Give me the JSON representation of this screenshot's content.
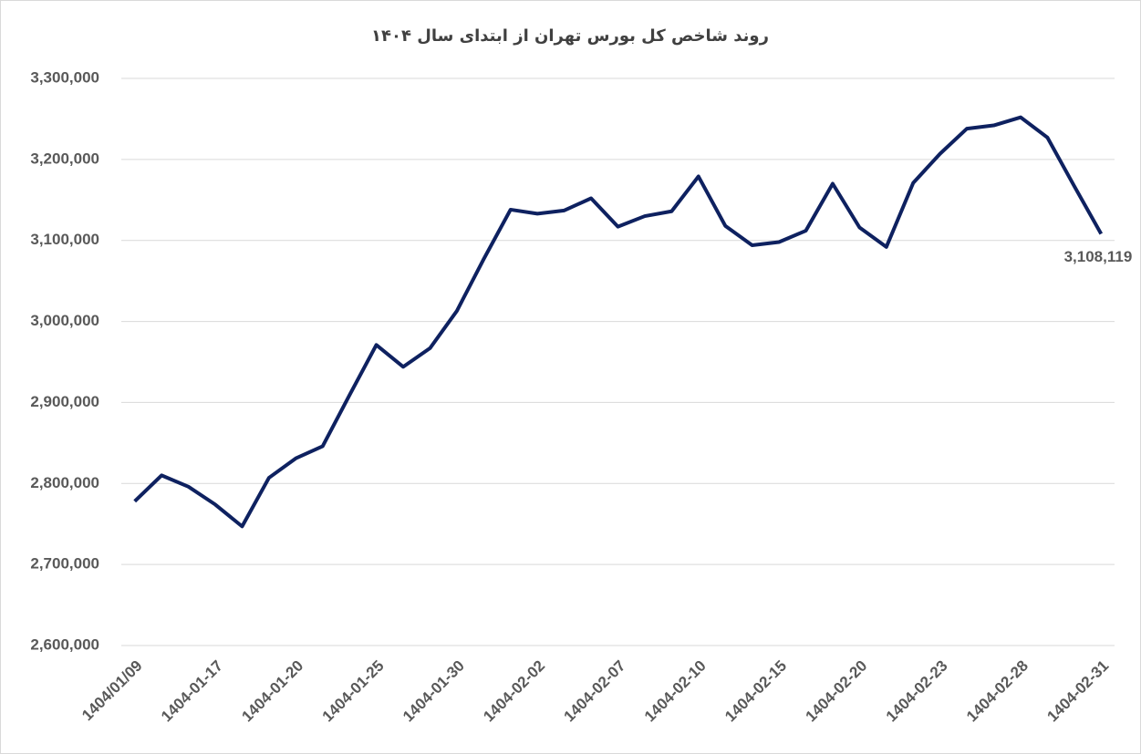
{
  "chart_data": {
    "type": "line",
    "title": "روند شاخص کل بورس تهران از ابتدای سال ۱۴۰۴",
    "categories": [
      "1404/01/09",
      null,
      null,
      "1404-01-17",
      null,
      null,
      "1404-01-20",
      null,
      null,
      "1404-01-25",
      null,
      null,
      "1404-01-30",
      null,
      null,
      "1404-02-02",
      null,
      null,
      "1404-02-07",
      null,
      null,
      "1404-02-10",
      null,
      null,
      "1404-02-15",
      null,
      null,
      "1404-02-20",
      null,
      null,
      "1404-02-23",
      null,
      null,
      "1404-02-28",
      null,
      null,
      "1404-02-31"
    ],
    "series": [
      {
        "color": "#0e2160",
        "values": [
          2778000,
          2810000,
          2796000,
          2774000,
          2747000,
          2807000,
          2831000,
          2846000,
          2909000,
          2971000,
          2944000,
          2967000,
          3013000,
          3077000,
          3138000,
          3133000,
          3137000,
          3152000,
          3117000,
          3130000,
          3136000,
          3179000,
          3118000,
          3094000,
          3098000,
          3112000,
          3170000,
          3116000,
          3092000,
          3171000,
          3207000,
          3238000,
          3242000,
          3252000,
          3227000,
          3167000,
          3108119
        ],
        "value_labels": [
          null,
          null,
          null,
          null,
          null,
          null,
          null,
          null,
          null,
          null,
          null,
          null,
          null,
          null,
          null,
          null,
          null,
          null,
          null,
          null,
          null,
          null,
          null,
          null,
          null,
          null,
          null,
          null,
          null,
          null,
          null,
          null,
          null,
          null,
          null,
          null,
          "3,108,119"
        ]
      }
    ],
    "ylim": [
      2600000,
      3300000
    ],
    "yticks": [
      {
        "value": 2600000,
        "label": "2,600,000"
      },
      {
        "value": 2700000,
        "label": "2,700,000"
      },
      {
        "value": 2800000,
        "label": "2,800,000"
      },
      {
        "value": 2900000,
        "label": "2,900,000"
      },
      {
        "value": 3000000,
        "label": "3,000,000"
      },
      {
        "value": 3100000,
        "label": "3,100,000"
      },
      {
        "value": 3200000,
        "label": "3,200,000"
      },
      {
        "value": 3300000,
        "label": "3,300,000"
      }
    ],
    "grid": true
  }
}
